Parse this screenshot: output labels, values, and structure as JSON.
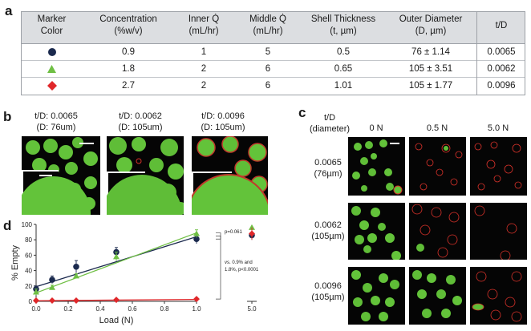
{
  "panel_letters": {
    "a": "a",
    "b": "b",
    "c": "c",
    "d": "d"
  },
  "table": {
    "headers": [
      "Marker\nColor",
      "Concentration\n(%w/v)",
      "Inner Q̇\n(mL/hr)",
      "Middle Q̇\n(mL/hr)",
      "Shell Thickness\n(t, µm)",
      "Outer Diameter\n(D, µm)",
      "t/D"
    ],
    "rows": [
      {
        "marker": "circle",
        "marker_color": "#1b2a4e",
        "concentration": "0.9",
        "inner_q": "1",
        "middle_q": "5",
        "shell": "0.5",
        "outer": "76 ± 1.14",
        "td": "0.0065"
      },
      {
        "marker": "triangle",
        "marker_color": "#6fbf44",
        "concentration": "1.8",
        "inner_q": "2",
        "middle_q": "6",
        "shell": "0.65",
        "outer": "105 ± 3.51",
        "td": "0.0062"
      },
      {
        "marker": "diamond",
        "marker_color": "#e0272a",
        "concentration": "2.7",
        "inner_q": "2",
        "middle_q": "6",
        "shell": "1.01",
        "outer": "105 ± 1.77",
        "td": "0.0096"
      }
    ]
  },
  "panel_b": {
    "captions": [
      [
        "t/D: 0.0065",
        "(D: 76um)"
      ],
      [
        "t/D: 0.0062",
        "(D: 105um)"
      ],
      [
        "t/D: 0.0096",
        "(D: 105um)"
      ]
    ]
  },
  "panel_c": {
    "corner_header": [
      "t/D",
      "(diameter)"
    ],
    "column_headers": [
      "0 N",
      "0.5 N",
      "5.0 N"
    ],
    "row_labels": [
      [
        "0.0065",
        "(76µm)"
      ],
      [
        "0.0062",
        "(105µm)"
      ],
      [
        "0.0096",
        "(105µm)"
      ]
    ]
  },
  "chart_data": {
    "type": "line",
    "xlabel": "Load (N)",
    "ylabel": "% Empty",
    "x_ticks_main": [
      "0.0",
      "0.2",
      "0.4",
      "0.6",
      "0.8",
      "1.0"
    ],
    "x_tick_break": "5.0",
    "y_ticks": [
      "0",
      "20",
      "40",
      "60",
      "80",
      "100"
    ],
    "ylim": [
      0,
      100
    ],
    "xlim": [
      0,
      1.0
    ],
    "series": [
      {
        "marker": "circle",
        "color": "#1b2a4e",
        "x": [
          0,
          0.1,
          0.25,
          0.5,
          1.0
        ],
        "y": [
          16,
          28,
          45,
          64,
          81
        ],
        "err": [
          4,
          5,
          8,
          6,
          6
        ],
        "fit": [
          [
            0,
            19
          ],
          [
            1.0,
            84
          ]
        ],
        "break_x5": 86,
        "break_err": 6
      },
      {
        "marker": "triangle",
        "color": "#6fbf44",
        "x": [
          0,
          0.1,
          0.25,
          0.5,
          1.0
        ],
        "y": [
          12,
          18,
          33,
          58,
          88
        ],
        "err": [
          4,
          3,
          3,
          6,
          5
        ],
        "fit": [
          [
            0,
            11
          ],
          [
            1.0,
            89
          ]
        ],
        "break_x5": 96,
        "break_err": 3
      },
      {
        "marker": "diamond",
        "color": "#e0272a",
        "x": [
          0,
          0.1,
          0.25,
          0.5,
          1.0
        ],
        "y": [
          1,
          1,
          1,
          2,
          3
        ],
        "err": [
          0.5,
          0.5,
          0.5,
          0.8,
          1
        ],
        "fit": [
          [
            0,
            0.8
          ],
          [
            1.0,
            2.5
          ]
        ],
        "break_x5": 88,
        "break_err": 8
      }
    ],
    "annotations": {
      "p1": "p=0.061",
      "p2": [
        "vs. 0.9% and",
        "1.8%, p<0.0001"
      ]
    }
  }
}
